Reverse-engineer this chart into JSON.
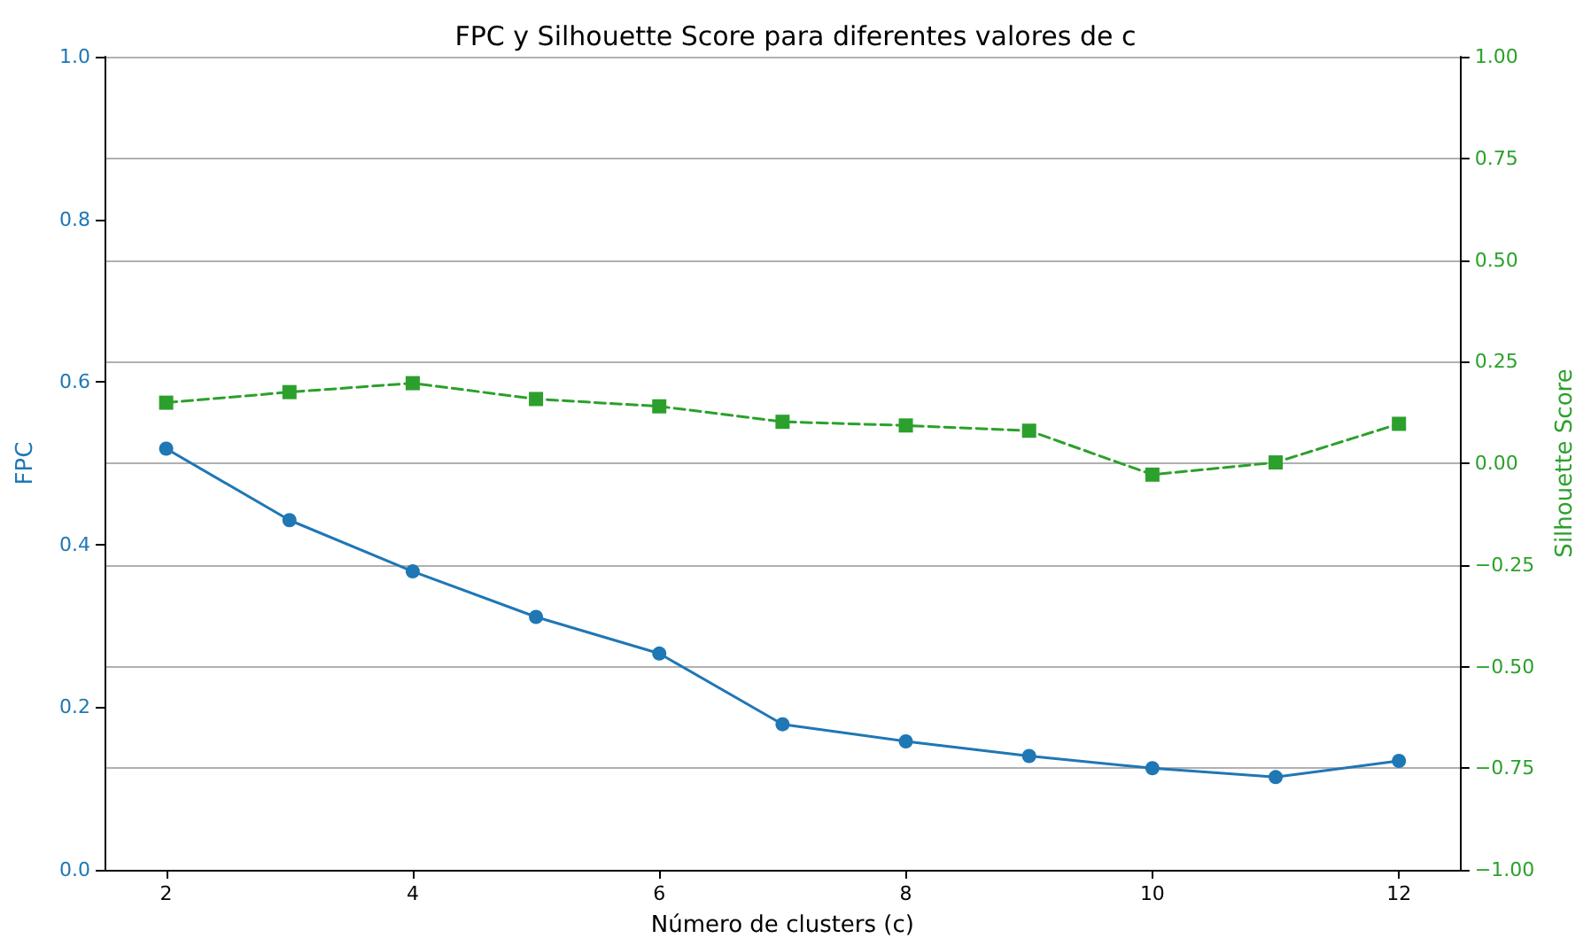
{
  "chart_data": {
    "type": "line",
    "title": "FPC y Silhouette Score para diferentes valores de c",
    "xlabel": "Número de clusters (c)",
    "ylabel": "FPC",
    "y2label": "Silhouette Score",
    "x": [
      2,
      3,
      4,
      5,
      6,
      7,
      8,
      9,
      10,
      11,
      12
    ],
    "series": [
      {
        "color": "#1f77b4",
        "marker": "circle",
        "line_style": "solid",
        "values": [
          0.518,
          0.43,
          0.367,
          0.311,
          0.266,
          0.179,
          0.158,
          0.14,
          0.125,
          0.114,
          0.134
        ]
      },
      {
        "color": "#2ca02c",
        "marker": "square",
        "line_style": "dashed",
        "axis": "y2",
        "values": [
          0.149,
          0.175,
          0.197,
          0.158,
          0.14,
          0.102,
          0.093,
          0.08,
          -0.028,
          0.002,
          0.097
        ]
      }
    ],
    "xlim": [
      1.5,
      12.5
    ],
    "xticks": [
      2,
      4,
      6,
      8,
      10,
      12
    ],
    "ylim": [
      0,
      1
    ],
    "yticks": [
      {
        "value": 0,
        "label": "0.0"
      },
      0.2,
      0.4,
      0.6,
      0.8,
      {
        "value": 1,
        "label": "1.0"
      }
    ],
    "y2lim": [
      -1,
      1
    ],
    "y2ticks": [
      {
        "value": -1,
        "label": "−1.00"
      },
      {
        "value": -0.75,
        "label": "−0.75"
      },
      {
        "value": -0.5,
        "label": "−0.50"
      },
      {
        "value": -0.25,
        "label": "−0.25"
      },
      {
        "value": 0,
        "label": "0.00"
      },
      0.25,
      {
        "value": 0.5,
        "label": "0.50"
      },
      0.75,
      {
        "value": 1,
        "label": "1.00"
      }
    ],
    "grid": "y2"
  }
}
